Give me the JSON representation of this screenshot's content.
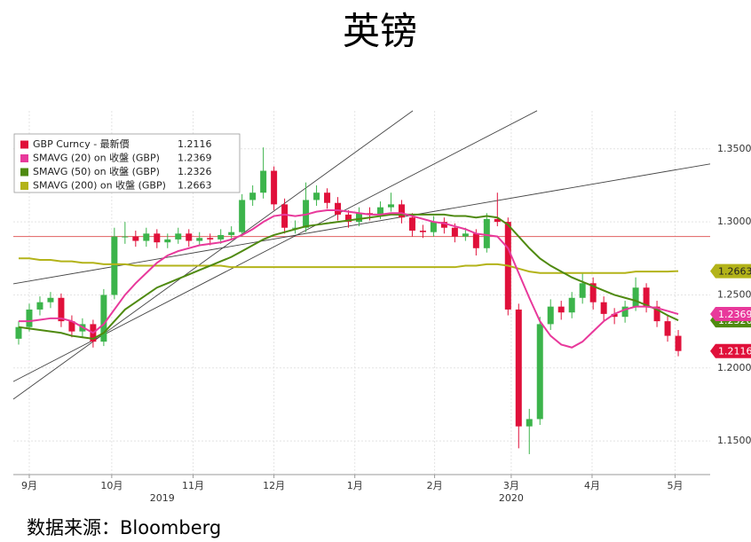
{
  "chart_data": {
    "type": "candlestick",
    "title": "英镑",
    "source": "数据来源：Bloomberg",
    "xlim": [
      -0.5,
      65
    ],
    "xticks": [
      {
        "value": 1,
        "label": "9月"
      },
      {
        "value": 8.75,
        "label": "10月"
      },
      {
        "value": 16.4,
        "label": "11月"
      },
      {
        "value": 24,
        "label": "12月"
      },
      {
        "value": 31.6,
        "label": "1月"
      },
      {
        "value": 39.1,
        "label": "2月"
      },
      {
        "value": 46.3,
        "label": "3月"
      },
      {
        "value": 53.9,
        "label": "4月"
      },
      {
        "value": 61.7,
        "label": "5月"
      }
    ],
    "year_labels": [
      {
        "value": 13.5,
        "label": "2019"
      },
      {
        "value": 46.3,
        "label": "2020"
      }
    ],
    "ylim": [
      1.127,
      1.376
    ],
    "yticks": [
      {
        "value": 1.15,
        "label": "1.1500"
      },
      {
        "value": 1.2,
        "label": "1.2000"
      },
      {
        "value": 1.25,
        "label": "1.2500"
      },
      {
        "value": 1.3,
        "label": "1.3000"
      },
      {
        "value": 1.35,
        "label": "1.3500"
      }
    ],
    "grid": true,
    "series": [
      {
        "name": "GBP Curncy - 最新價",
        "type": "candlestick",
        "color": "#e0103a",
        "up_color": "#3cb44b",
        "down_color": "#e0103a",
        "values": [
          [
            1.22,
            1.232,
            1.216,
            1.228
          ],
          [
            1.228,
            1.244,
            1.225,
            1.24
          ],
          [
            1.24,
            1.249,
            1.236,
            1.245
          ],
          [
            1.245,
            1.252,
            1.241,
            1.248
          ],
          [
            1.248,
            1.251,
            1.228,
            1.232
          ],
          [
            1.232,
            1.236,
            1.221,
            1.225
          ],
          [
            1.225,
            1.234,
            1.221,
            1.23
          ],
          [
            1.23,
            1.233,
            1.214,
            1.218
          ],
          [
            1.218,
            1.254,
            1.215,
            1.25
          ],
          [
            1.25,
            1.296,
            1.247,
            1.29
          ],
          [
            1.29,
            1.3,
            1.285,
            1.29
          ],
          [
            1.29,
            1.294,
            1.283,
            1.287
          ],
          [
            1.287,
            1.296,
            1.283,
            1.292
          ],
          [
            1.292,
            1.295,
            1.282,
            1.286
          ],
          [
            1.286,
            1.292,
            1.282,
            1.288
          ],
          [
            1.288,
            1.296,
            1.285,
            1.292
          ],
          [
            1.292,
            1.295,
            1.283,
            1.287
          ],
          [
            1.287,
            1.293,
            1.284,
            1.289
          ],
          [
            1.289,
            1.292,
            1.284,
            1.288
          ],
          [
            1.288,
            1.295,
            1.285,
            1.291
          ],
          [
            1.291,
            1.297,
            1.288,
            1.293
          ],
          [
            1.293,
            1.319,
            1.29,
            1.315
          ],
          [
            1.315,
            1.325,
            1.311,
            1.32
          ],
          [
            1.32,
            1.351,
            1.316,
            1.335
          ],
          [
            1.335,
            1.338,
            1.308,
            1.312
          ],
          [
            1.312,
            1.316,
            1.292,
            1.296
          ],
          [
            1.296,
            1.301,
            1.292,
            1.296
          ],
          [
            1.296,
            1.327,
            1.293,
            1.315
          ],
          [
            1.315,
            1.325,
            1.311,
            1.32
          ],
          [
            1.32,
            1.323,
            1.309,
            1.313
          ],
          [
            1.313,
            1.317,
            1.301,
            1.305
          ],
          [
            1.305,
            1.308,
            1.296,
            1.3
          ],
          [
            1.3,
            1.31,
            1.297,
            1.306
          ],
          [
            1.306,
            1.31,
            1.301,
            1.305
          ],
          [
            1.305,
            1.314,
            1.302,
            1.31
          ],
          [
            1.31,
            1.32,
            1.307,
            1.312
          ],
          [
            1.312,
            1.315,
            1.299,
            1.303
          ],
          [
            1.303,
            1.306,
            1.29,
            1.294
          ],
          [
            1.294,
            1.298,
            1.289,
            1.293
          ],
          [
            1.293,
            1.304,
            1.29,
            1.3
          ],
          [
            1.3,
            1.303,
            1.292,
            1.296
          ],
          [
            1.296,
            1.299,
            1.286,
            1.29
          ],
          [
            1.29,
            1.296,
            1.287,
            1.292
          ],
          [
            1.292,
            1.295,
            1.277,
            1.282
          ],
          [
            1.282,
            1.306,
            1.279,
            1.302
          ],
          [
            1.302,
            1.32,
            1.297,
            1.3
          ],
          [
            1.3,
            1.303,
            1.236,
            1.24
          ],
          [
            1.24,
            1.244,
            1.145,
            1.16
          ],
          [
            1.16,
            1.172,
            1.141,
            1.165
          ],
          [
            1.165,
            1.235,
            1.161,
            1.23
          ],
          [
            1.23,
            1.247,
            1.226,
            1.242
          ],
          [
            1.242,
            1.246,
            1.233,
            1.238
          ],
          [
            1.238,
            1.252,
            1.234,
            1.248
          ],
          [
            1.248,
            1.265,
            1.244,
            1.258
          ],
          [
            1.258,
            1.262,
            1.24,
            1.245
          ],
          [
            1.245,
            1.249,
            1.232,
            1.237
          ],
          [
            1.237,
            1.241,
            1.23,
            1.235
          ],
          [
            1.235,
            1.246,
            1.231,
            1.242
          ],
          [
            1.242,
            1.262,
            1.239,
            1.255
          ],
          [
            1.255,
            1.258,
            1.238,
            1.242
          ],
          [
            1.242,
            1.246,
            1.228,
            1.232
          ],
          [
            1.232,
            1.236,
            1.218,
            1.222
          ],
          [
            1.222,
            1.226,
            1.208,
            1.2116
          ]
        ]
      },
      {
        "name": "SMAVG (20) on 收盤 (GBP)",
        "type": "line",
        "color": "#e8399b",
        "values": [
          1.232,
          1.232,
          1.233,
          1.234,
          1.234,
          1.232,
          1.228,
          1.224,
          1.23,
          1.24,
          1.25,
          1.258,
          1.265,
          1.272,
          1.277,
          1.28,
          1.282,
          1.284,
          1.285,
          1.286,
          1.288,
          1.291,
          1.295,
          1.3,
          1.304,
          1.305,
          1.304,
          1.305,
          1.307,
          1.308,
          1.308,
          1.307,
          1.306,
          1.305,
          1.305,
          1.306,
          1.306,
          1.304,
          1.302,
          1.3,
          1.299,
          1.297,
          1.295,
          1.292,
          1.291,
          1.29,
          1.282,
          1.265,
          1.248,
          1.232,
          1.222,
          1.216,
          1.214,
          1.218,
          1.225,
          1.232,
          1.237,
          1.24,
          1.242,
          1.242,
          1.241,
          1.239,
          1.2369
        ]
      },
      {
        "name": "SMAVG (50) on 收盤 (GBP)",
        "type": "line",
        "color": "#4f8a10",
        "values": [
          1.228,
          1.227,
          1.226,
          1.225,
          1.224,
          1.222,
          1.221,
          1.22,
          1.224,
          1.232,
          1.24,
          1.245,
          1.25,
          1.255,
          1.258,
          1.261,
          1.264,
          1.267,
          1.27,
          1.273,
          1.276,
          1.28,
          1.284,
          1.288,
          1.291,
          1.293,
          1.295,
          1.297,
          1.298,
          1.299,
          1.3,
          1.301,
          1.302,
          1.303,
          1.304,
          1.305,
          1.305,
          1.305,
          1.305,
          1.305,
          1.305,
          1.304,
          1.304,
          1.303,
          1.304,
          1.303,
          1.298,
          1.29,
          1.282,
          1.275,
          1.27,
          1.266,
          1.262,
          1.259,
          1.256,
          1.253,
          1.25,
          1.248,
          1.246,
          1.243,
          1.24,
          1.236,
          1.2326
        ]
      },
      {
        "name": "SMAVG (200) on 收盤 (GBP)",
        "type": "line",
        "color": "#b3b319",
        "values": [
          1.275,
          1.275,
          1.274,
          1.274,
          1.273,
          1.273,
          1.272,
          1.272,
          1.271,
          1.271,
          1.271,
          1.27,
          1.27,
          1.27,
          1.27,
          1.27,
          1.27,
          1.27,
          1.27,
          1.27,
          1.269,
          1.269,
          1.269,
          1.269,
          1.269,
          1.269,
          1.269,
          1.269,
          1.269,
          1.269,
          1.269,
          1.269,
          1.269,
          1.269,
          1.269,
          1.269,
          1.269,
          1.269,
          1.269,
          1.269,
          1.269,
          1.269,
          1.27,
          1.27,
          1.271,
          1.271,
          1.27,
          1.268,
          1.266,
          1.265,
          1.265,
          1.265,
          1.265,
          1.265,
          1.265,
          1.265,
          1.265,
          1.265,
          1.266,
          1.266,
          1.266,
          1.266,
          1.2663
        ]
      }
    ],
    "reference_lines": [
      {
        "value": 1.29,
        "color": "#e06060"
      }
    ],
    "trendlines": [
      {
        "x": [
          -0.5,
          37.05
        ],
        "y": [
          1.1786,
          1.3761
        ],
        "color": "#444444"
      },
      {
        "x": [
          -0.5,
          48.73
        ],
        "y": [
          1.1907,
          1.3761
        ],
        "color": "#444444"
      },
      {
        "x": [
          -0.5,
          65
        ],
        "y": [
          1.2576,
          1.3397
        ],
        "color": "#444444"
      }
    ]
  }
}
